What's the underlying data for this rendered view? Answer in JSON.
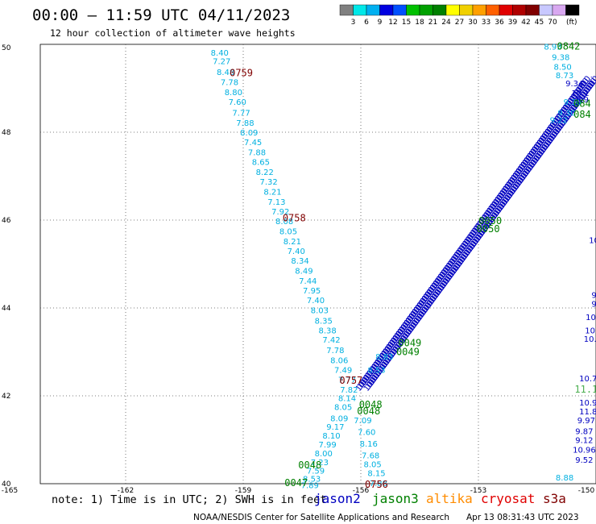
{
  "header": {
    "title": "00:00 – 11:59 UTC 04/11/2023",
    "subtitle": "12 hour collection of altimeter wave heights"
  },
  "scale": {
    "unit": "(ft)",
    "labels": [
      "3",
      "6",
      "9",
      "12",
      "15",
      "18",
      "21",
      "24",
      "27",
      "30",
      "33",
      "36",
      "39",
      "42",
      "45",
      "70"
    ],
    "colors": [
      "#808080",
      "#00e8e8",
      "#00b0f0",
      "#0000e0",
      "#0050ff",
      "#00c000",
      "#00a000",
      "#008000",
      "#ffff00",
      "#f0d000",
      "#ffa000",
      "#ff6000",
      "#e00000",
      "#b00000",
      "#800000",
      "#c8c8ff",
      "#d8a8f0",
      "#000000"
    ]
  },
  "footer": {
    "note": "note: 1) Time is in UTC; 2) SWH is in feet",
    "credit": "NOAA/NESDIS Center for Satellite Applications and Research",
    "timestamp": "Apr 13 08:31:43 UTC 2023",
    "satellites": [
      {
        "name": "jason2",
        "color": "#0000c0"
      },
      {
        "name": "jason3",
        "color": "#008000"
      },
      {
        "name": "altika",
        "color": "#ff8c00"
      },
      {
        "name": "cryosat",
        "color": "#e00000"
      },
      {
        "name": "s3a",
        "color": "#800000"
      }
    ]
  },
  "chart_data": {
    "type": "scatter",
    "x_ticks": [
      "-165",
      "-162",
      "-159",
      "-156",
      "-153",
      "-150"
    ],
    "y_ticks": [
      "50",
      "48",
      "46",
      "44",
      "42",
      "40"
    ],
    "xlim": [
      -165,
      -150
    ],
    "ylim": [
      40,
      50
    ],
    "grid": true,
    "series": [
      {
        "name": "s3a",
        "color": "#00b0e0",
        "points": [
          {
            "lon": -159.6,
            "lat": 49.82,
            "label": "8.40"
          },
          {
            "lon": -159.55,
            "lat": 49.62,
            "label": "7.27"
          },
          {
            "lon": -159.45,
            "lat": 49.38,
            "label": "8.48"
          },
          {
            "lon": -159.35,
            "lat": 49.15,
            "label": "7.78"
          },
          {
            "lon": -159.25,
            "lat": 48.92,
            "label": "8.80"
          },
          {
            "lon": -159.15,
            "lat": 48.7,
            "label": "7.60"
          },
          {
            "lon": -159.05,
            "lat": 48.45,
            "label": "7.77"
          },
          {
            "lon": -158.95,
            "lat": 48.22,
            "label": "7.88"
          },
          {
            "lon": -158.85,
            "lat": 48.0,
            "label": "8.09"
          },
          {
            "lon": -158.75,
            "lat": 47.78,
            "label": "7.45"
          },
          {
            "lon": -158.65,
            "lat": 47.55,
            "label": "7.88"
          },
          {
            "lon": -158.55,
            "lat": 47.33,
            "label": "8.65"
          },
          {
            "lon": -158.45,
            "lat": 47.1,
            "label": "8.22"
          },
          {
            "lon": -158.35,
            "lat": 46.88,
            "label": "7.32"
          },
          {
            "lon": -158.25,
            "lat": 46.65,
            "label": "8.21"
          },
          {
            "lon": -158.15,
            "lat": 46.42,
            "label": "7.13"
          },
          {
            "lon": -158.05,
            "lat": 46.2,
            "label": "7.92"
          },
          {
            "lon": -157.95,
            "lat": 45.98,
            "label": "8.08"
          },
          {
            "lon": -157.85,
            "lat": 45.75,
            "label": "8.05"
          },
          {
            "lon": -157.75,
            "lat": 45.52,
            "label": "8.21"
          },
          {
            "lon": -157.65,
            "lat": 45.3,
            "label": "7.40"
          },
          {
            "lon": -157.55,
            "lat": 45.08,
            "label": "8.34"
          },
          {
            "lon": -157.45,
            "lat": 44.85,
            "label": "8.49"
          },
          {
            "lon": -157.35,
            "lat": 44.62,
            "label": "7.44"
          },
          {
            "lon": -157.25,
            "lat": 44.4,
            "label": "7.95"
          },
          {
            "lon": -157.15,
            "lat": 44.18,
            "label": "7.40"
          },
          {
            "lon": -157.05,
            "lat": 43.95,
            "label": "8.03"
          },
          {
            "lon": -156.95,
            "lat": 43.72,
            "label": "8.35"
          },
          {
            "lon": -156.85,
            "lat": 43.5,
            "label": "8.38"
          },
          {
            "lon": -156.75,
            "lat": 43.28,
            "label": "7.42"
          },
          {
            "lon": -156.65,
            "lat": 43.05,
            "label": "7.78"
          },
          {
            "lon": -156.55,
            "lat": 42.82,
            "label": "8.06"
          },
          {
            "lon": -156.45,
            "lat": 42.6,
            "label": "7.49"
          },
          {
            "lon": -156.35,
            "lat": 42.38,
            "label": "7.77"
          },
          {
            "lon": -156.3,
            "lat": 42.15,
            "label": "7.82"
          },
          {
            "lon": -156.35,
            "lat": 41.95,
            "label": "8.14"
          },
          {
            "lon": -156.45,
            "lat": 41.75,
            "label": "8.05"
          },
          {
            "lon": -156.55,
            "lat": 41.5,
            "label": "8.09"
          },
          {
            "lon": -156.65,
            "lat": 41.3,
            "label": "9.17"
          },
          {
            "lon": -156.75,
            "lat": 41.1,
            "label": "8.10"
          },
          {
            "lon": -156.85,
            "lat": 40.9,
            "label": "7.99"
          },
          {
            "lon": -156.95,
            "lat": 40.7,
            "label": "8.00"
          },
          {
            "lon": -157.05,
            "lat": 40.5,
            "label": "7.23"
          },
          {
            "lon": -157.15,
            "lat": 40.3,
            "label": "7.59"
          },
          {
            "lon": -157.25,
            "lat": 40.12,
            "label": "8.53"
          },
          {
            "lon": -157.3,
            "lat": 39.97,
            "label": "7.89"
          },
          {
            "lon": -155.95,
            "lat": 41.45,
            "label": "7.09"
          },
          {
            "lon": -155.85,
            "lat": 41.18,
            "label": "7.60"
          },
          {
            "lon": -155.8,
            "lat": 40.92,
            "label": "8.16"
          },
          {
            "lon": -155.75,
            "lat": 40.65,
            "label": "7.68"
          },
          {
            "lon": -155.7,
            "lat": 40.45,
            "label": "8.05"
          },
          {
            "lon": -155.6,
            "lat": 40.25,
            "label": "8.15"
          },
          {
            "lon": -155.55,
            "lat": 40.02,
            "label": "7.88"
          },
          {
            "lon": -155.6,
            "lat": 42.6,
            "label": "8.53"
          },
          {
            "lon": -155.4,
            "lat": 42.9,
            "label": "8.83"
          },
          {
            "lon": -151.1,
            "lat": 49.95,
            "label": "8.93"
          },
          {
            "lon": -150.9,
            "lat": 49.72,
            "label": "9.38"
          },
          {
            "lon": -150.85,
            "lat": 49.5,
            "label": "8.50"
          },
          {
            "lon": -150.8,
            "lat": 49.3,
            "label": "8.73"
          },
          {
            "lon": -150.6,
            "lat": 48.7,
            "label": "9.30"
          },
          {
            "lon": -150.75,
            "lat": 48.45,
            "label": "9.30"
          },
          {
            "lon": -150.95,
            "lat": 48.28,
            "label": "9.22"
          },
          {
            "lon": -150.8,
            "lat": 40.15,
            "label": "8.88"
          }
        ]
      },
      {
        "name": "jason2",
        "color": "#0000c0",
        "points": [
          {
            "lon": -150.55,
            "lat": 49.12,
            "label": "9.34"
          },
          {
            "lon": -150.4,
            "lat": 48.9,
            "label": "10.1"
          },
          {
            "lon": -150.35,
            "lat": 48.75,
            "label": "9.9"
          },
          {
            "lon": -150.3,
            "lat": 41.0,
            "label": "9.12"
          },
          {
            "lon": -150.3,
            "lat": 41.2,
            "label": "9.87"
          },
          {
            "lon": -150.25,
            "lat": 41.45,
            "label": "9.97"
          },
          {
            "lon": -150.2,
            "lat": 41.65,
            "label": "11.8"
          },
          {
            "lon": -150.2,
            "lat": 41.85,
            "label": "10.9"
          },
          {
            "lon": -150.3,
            "lat": 40.78,
            "label": "10.96"
          },
          {
            "lon": -150.3,
            "lat": 40.55,
            "label": "9.52"
          },
          {
            "lon": -150.2,
            "lat": 42.4,
            "label": "10.7"
          },
          {
            "lon": -150.15,
            "lat": 43.3,
            "label": "10."
          },
          {
            "lon": -150.12,
            "lat": 43.5,
            "label": "10."
          },
          {
            "lon": -150.1,
            "lat": 43.8,
            "label": "10."
          },
          {
            "lon": -150.05,
            "lat": 44.1,
            "label": "9"
          },
          {
            "lon": -150.05,
            "lat": 44.3,
            "label": "9"
          },
          {
            "lon": -150.05,
            "lat": 45.55,
            "label": "10"
          }
        ]
      },
      {
        "name": "s3a-times",
        "color": "#800000",
        "points": [
          {
            "lon": -159.05,
            "lat": 49.35,
            "label": "0759"
          },
          {
            "lon": -157.7,
            "lat": 46.05,
            "label": "0758"
          },
          {
            "lon": -156.25,
            "lat": 42.35,
            "label": "0757"
          },
          {
            "lon": -155.6,
            "lat": 39.98,
            "label": "0756"
          }
        ]
      },
      {
        "name": "jason3-times",
        "color": "#008000",
        "points": [
          {
            "lon": -150.7,
            "lat": 49.95,
            "label": "0842"
          },
          {
            "lon": -150.35,
            "lat": 48.65,
            "label": "084"
          },
          {
            "lon": -150.35,
            "lat": 48.4,
            "label": "084"
          },
          {
            "lon": -152.7,
            "lat": 45.98,
            "label": "0050"
          },
          {
            "lon": -152.75,
            "lat": 45.8,
            "label": "0050"
          },
          {
            "lon": -154.75,
            "lat": 43.2,
            "label": "0049"
          },
          {
            "lon": -154.8,
            "lat": 43.0,
            "label": "0049"
          },
          {
            "lon": -155.75,
            "lat": 41.8,
            "label": "0048"
          },
          {
            "lon": -155.8,
            "lat": 41.65,
            "label": "0048"
          },
          {
            "lon": -157.3,
            "lat": 40.42,
            "label": "0048"
          },
          {
            "lon": -157.65,
            "lat": 40.02,
            "label": "0047"
          }
        ]
      },
      {
        "name": "altika-times",
        "color": "#4caf50",
        "points": [
          {
            "lon": -150.25,
            "lat": 42.15,
            "label": "11.1"
          }
        ]
      }
    ]
  }
}
